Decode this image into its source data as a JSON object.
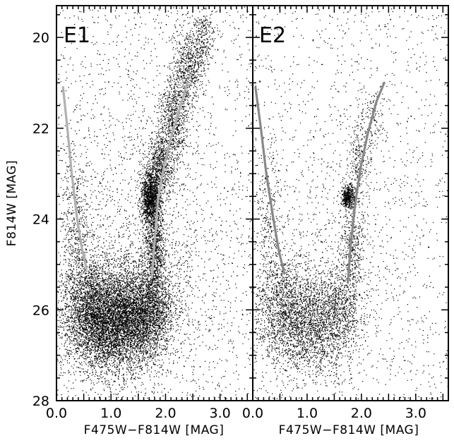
{
  "chart_data": {
    "type": "scatter",
    "ylabel": "F814W [MAG]",
    "panels": [
      {
        "label": "E1",
        "xlabel": "F475W−F814W [MAG]",
        "xlim": [
          0.0,
          3.6
        ],
        "ylim": [
          28,
          19.3
        ],
        "xticks": [
          0.0,
          1.0,
          2.0,
          3.0
        ],
        "xtick_labels": [
          "0.0",
          "1.0",
          "2.0",
          "3.0"
        ],
        "yticks": [
          20,
          22,
          24,
          26,
          28
        ],
        "ytick_labels": [
          "20",
          "22",
          "24",
          "26",
          "28"
        ],
        "series": [
          {
            "name": "",
            "color": "#b0b0b0",
            "points": [
              [
                0.12,
                21.1
              ],
              [
                0.2,
                22.0
              ],
              [
                0.28,
                23.0
              ],
              [
                0.38,
                24.0
              ],
              [
                0.46,
                24.6
              ],
              [
                0.55,
                25.1
              ]
            ]
          },
          {
            "name": "",
            "color": "#b0b0b0",
            "points": [
              [
                1.75,
                25.3
              ],
              [
                1.8,
                24.5
              ],
              [
                1.86,
                23.6
              ],
              [
                1.96,
                22.9
              ],
              [
                2.1,
                22.2
              ],
              [
                2.25,
                21.6
              ],
              [
                2.4,
                21.0
              ]
            ]
          }
        ],
        "stars": {
          "description_values": "density clumps",
          "clumps": [
            {
              "x": 1.1,
              "y": 26.2,
              "sx": 0.42,
              "sy": 0.55,
              "n": 5200
            },
            {
              "x": 0.6,
              "y": 26.0,
              "sx": 0.25,
              "sy": 0.6,
              "n": 1600
            },
            {
              "x": 1.65,
              "y": 26.0,
              "sx": 0.25,
              "sy": 0.5,
              "n": 1500
            },
            {
              "x": 1.72,
              "y": 23.5,
              "sx": 0.09,
              "sy": 0.28,
              "n": 1300
            },
            {
              "x": 1.8,
              "y": 24.6,
              "sx": 0.1,
              "sy": 0.5,
              "n": 900
            },
            {
              "x": 1.9,
              "y": 22.8,
              "sx": 0.12,
              "sy": 0.35,
              "n": 700
            },
            {
              "x": 2.15,
              "y": 21.8,
              "sx": 0.13,
              "sy": 0.45,
              "n": 700
            },
            {
              "x": 2.4,
              "y": 20.7,
              "sx": 0.14,
              "sy": 0.45,
              "n": 600
            },
            {
              "x": 2.65,
              "y": 20.0,
              "sx": 0.12,
              "sy": 0.35,
              "n": 300
            },
            {
              "x": 0.35,
              "y": 24.3,
              "sx": 0.12,
              "sy": 0.9,
              "n": 500
            },
            {
              "x": 1.6,
              "y": 25.2,
              "sx": 0.7,
              "sy": 1.6,
              "n": 1400
            }
          ],
          "field": 1800
        }
      },
      {
        "label": "E2",
        "xlabel": "F475W−F814W [MAG]",
        "xlim": [
          0.0,
          3.6
        ],
        "ylim": [
          28,
          19.3
        ],
        "xticks": [
          0.0,
          1.0,
          2.0,
          3.0
        ],
        "xtick_labels": [
          "0.0",
          "1.0",
          "2.0",
          "3.0"
        ],
        "yticks": [
          20,
          22,
          24,
          26,
          28
        ],
        "series": [
          {
            "name": "",
            "color": "#888888",
            "points": [
              [
                0.05,
                21.1
              ],
              [
                0.15,
                22.0
              ],
              [
                0.25,
                23.0
              ],
              [
                0.38,
                24.0
              ],
              [
                0.48,
                24.7
              ],
              [
                0.58,
                25.2
              ]
            ]
          },
          {
            "name": "",
            "color": "#888888",
            "points": [
              [
                1.75,
                25.4
              ],
              [
                1.8,
                24.6
              ],
              [
                1.88,
                23.7
              ],
              [
                1.98,
                22.9
              ],
              [
                2.12,
                22.1
              ],
              [
                2.28,
                21.4
              ],
              [
                2.42,
                21.0
              ]
            ]
          }
        ],
        "stars": {
          "clumps": [
            {
              "x": 1.0,
              "y": 26.3,
              "sx": 0.4,
              "sy": 0.55,
              "n": 2200
            },
            {
              "x": 0.5,
              "y": 25.8,
              "sx": 0.22,
              "sy": 0.6,
              "n": 700
            },
            {
              "x": 1.6,
              "y": 25.9,
              "sx": 0.22,
              "sy": 0.5,
              "n": 600
            },
            {
              "x": 1.75,
              "y": 23.5,
              "sx": 0.06,
              "sy": 0.12,
              "n": 450
            },
            {
              "x": 1.82,
              "y": 24.5,
              "sx": 0.1,
              "sy": 0.5,
              "n": 350
            },
            {
              "x": 1.95,
              "y": 22.7,
              "sx": 0.1,
              "sy": 0.4,
              "n": 220
            },
            {
              "x": 2.2,
              "y": 21.8,
              "sx": 0.12,
              "sy": 0.4,
              "n": 150
            },
            {
              "x": 0.3,
              "y": 24.0,
              "sx": 0.12,
              "sy": 0.9,
              "n": 300
            },
            {
              "x": 1.5,
              "y": 25.0,
              "sx": 0.7,
              "sy": 1.5,
              "n": 600
            }
          ],
          "field": 1400
        }
      }
    ]
  }
}
